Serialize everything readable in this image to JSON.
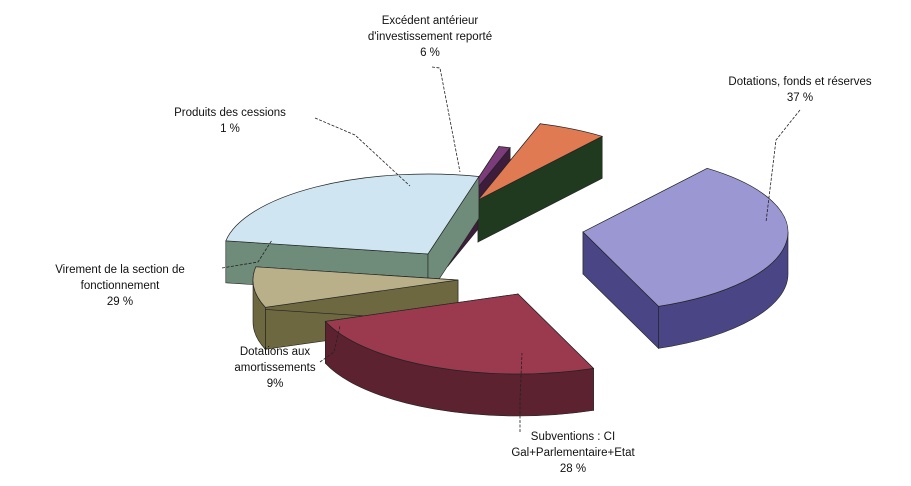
{
  "chart_data": {
    "type": "pie",
    "three_d": true,
    "exploded": true,
    "legend": "none",
    "slices": [
      {
        "label_lines": [
          "Dotations, fonds et réserves",
          "37 %"
        ],
        "value": 37,
        "color": "#9b97d2",
        "side_color": "#4a4686"
      },
      {
        "label_lines": [
          "Subventions : CI",
          "Gal+Parlementaire+Etat",
          "28 %"
        ],
        "value": 28,
        "color": "#9b3a4e",
        "side_color": "#5c2230"
      },
      {
        "label_lines": [
          "Dotations aux",
          "amortissements",
          "9%"
        ],
        "value": 9,
        "color": "#b9b08a",
        "side_color": "#6e6840"
      },
      {
        "label_lines": [
          "Virement de la section de",
          "fonctionnement",
          "29 %"
        ],
        "value": 29,
        "color": "#cfe6f2",
        "side_color": "#6f8c7a"
      },
      {
        "label_lines": [
          "Produits des cessions",
          "1 %"
        ],
        "value": 1,
        "color": "#7c3b7a",
        "side_color": "#3e1d3c"
      },
      {
        "label_lines": [
          "Excédent antérieur",
          "d'investissement reporté",
          "6 %"
        ],
        "value": 6,
        "color": "#e07a52",
        "side_color": "#1f3a1f"
      }
    ]
  }
}
